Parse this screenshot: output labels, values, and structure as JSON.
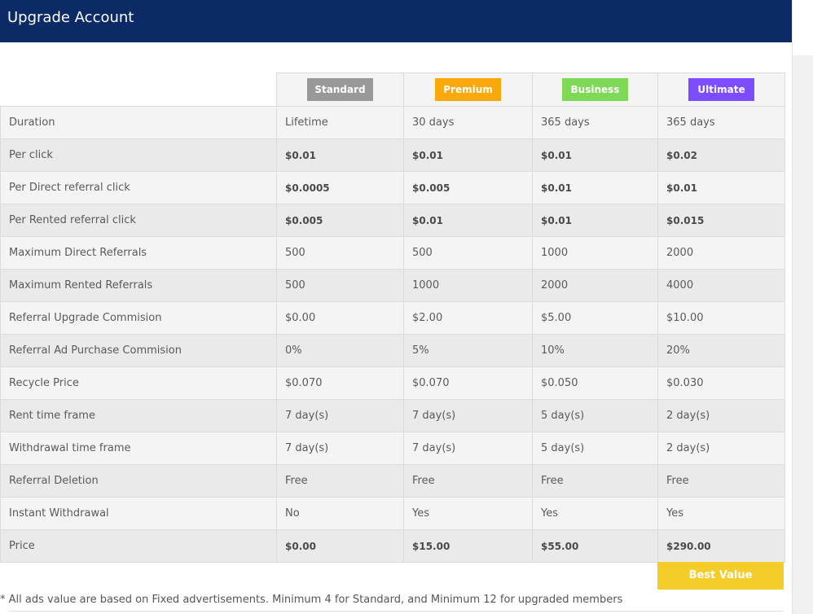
{
  "header": {
    "title": "Upgrade Account"
  },
  "plans": [
    {
      "name": "Standard",
      "color": "#999999"
    },
    {
      "name": "Premium",
      "color": "#f9a90b"
    },
    {
      "name": "Business",
      "color": "#7ed957"
    },
    {
      "name": "Ultimate",
      "color": "#7c4dff"
    }
  ],
  "rows": [
    {
      "label": "Duration",
      "values": [
        "Lifetime",
        "30 days",
        "365 days",
        "365 days"
      ]
    },
    {
      "label": "Per click",
      "values": [
        "$0.01",
        "$0.01",
        "$0.01",
        "$0.02"
      ]
    },
    {
      "label": "Per Direct referral click",
      "values": [
        "$0.0005",
        "$0.005",
        "$0.01",
        "$0.01"
      ]
    },
    {
      "label": "Per Rented referral click",
      "values": [
        "$0.005",
        "$0.01",
        "$0.01",
        "$0.015"
      ]
    },
    {
      "label": "Maximum Direct Referrals",
      "values": [
        "500",
        "500",
        "1000",
        "2000"
      ]
    },
    {
      "label": "Maximum Rented Referrals",
      "values": [
        "500",
        "1000",
        "2000",
        "4000"
      ]
    },
    {
      "label": "Referral Upgrade Commision",
      "values": [
        "$0.00",
        "$2.00",
        "$5.00",
        "$10.00"
      ]
    },
    {
      "label": "Referral Ad Purchase Commision",
      "values": [
        "0%",
        "5%",
        "10%",
        "20%"
      ]
    },
    {
      "label": "Recycle Price",
      "values": [
        "$0.070",
        "$0.070",
        "$0.050",
        "$0.030"
      ]
    },
    {
      "label": "Rent time frame",
      "values": [
        "7 day(s)",
        "7 day(s)",
        "5 day(s)",
        "2 day(s)"
      ]
    },
    {
      "label": "Withdrawal time frame",
      "values": [
        "7 day(s)",
        "7 day(s)",
        "5 day(s)",
        "2 day(s)"
      ]
    },
    {
      "label": "Referral Deletion",
      "values": [
        "Free",
        "Free",
        "Free",
        "Free"
      ]
    },
    {
      "label": "Instant Withdrawal",
      "values": [
        "No",
        "Yes",
        "Yes",
        "Yes"
      ]
    },
    {
      "label": "Price",
      "values": [
        "$0.00",
        "$15.00",
        "$55.00",
        "$290.00"
      ]
    }
  ],
  "best_value": {
    "label": "Best Value",
    "color": "#f4cd2a"
  },
  "footnote": "* All ads value are based on Fixed advertisements. Minimum 4 for Standard, and Minimum 12 for upgraded members"
}
